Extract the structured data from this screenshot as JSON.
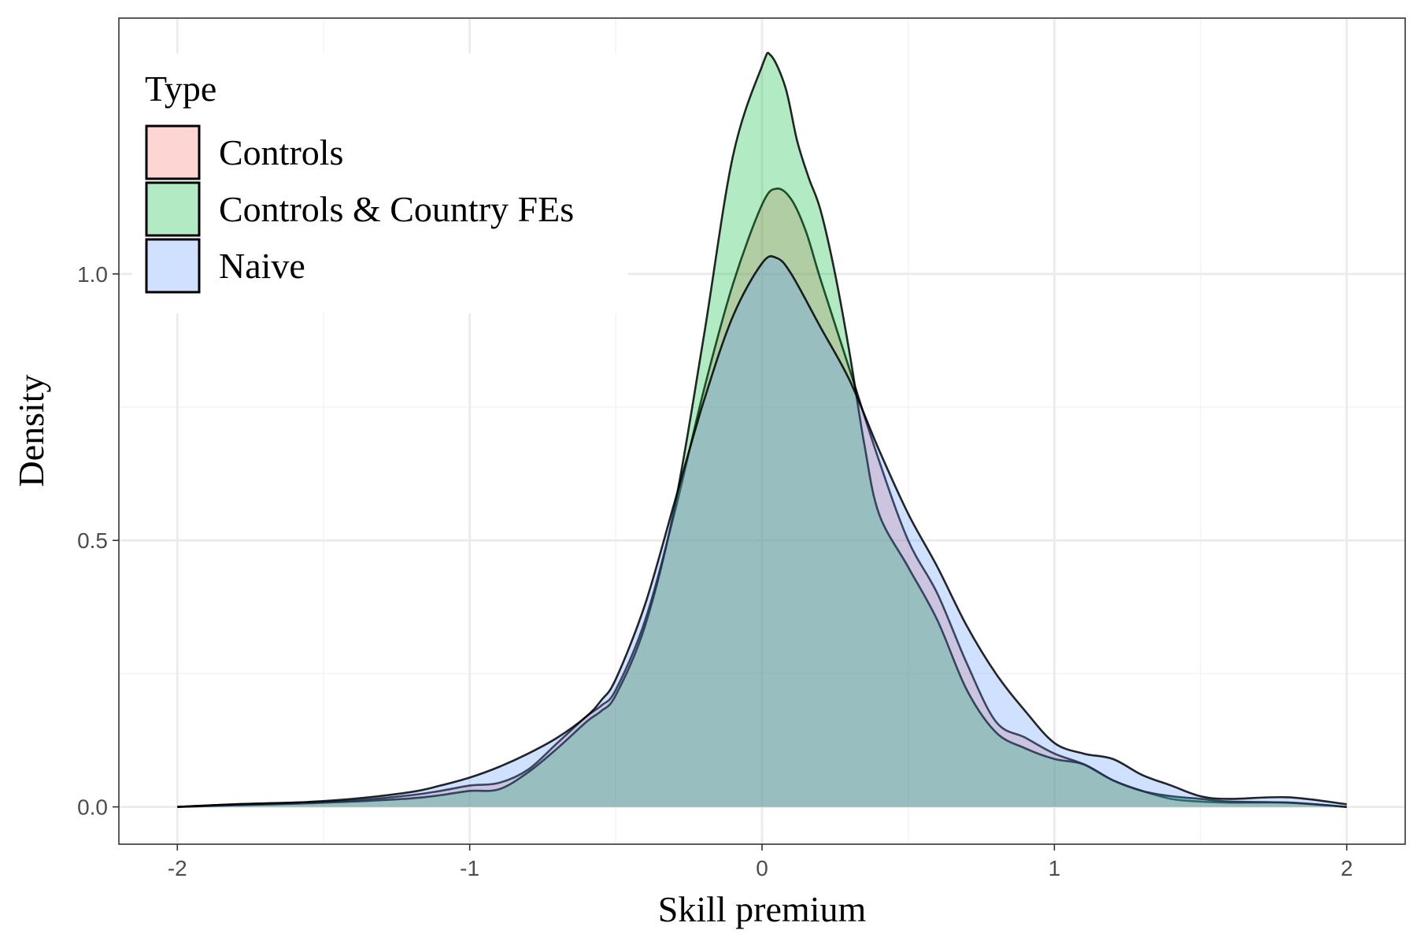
{
  "chart_data": {
    "type": "area",
    "xlabel": "Skill premium",
    "ylabel": "Density",
    "xlim": [
      -2.2,
      2.2
    ],
    "ylim": [
      -0.07,
      1.48
    ],
    "x_ticks": [
      -2,
      -1,
      0,
      1,
      2
    ],
    "x_tick_labels": [
      "-2",
      "-1",
      "0",
      "1",
      "2"
    ],
    "y_ticks": [
      0.0,
      0.5,
      1.0
    ],
    "y_tick_labels": [
      "0.0",
      "0.5",
      "1.0"
    ],
    "grid": true,
    "legend": {
      "title": "Type",
      "position": "top-left",
      "entries": [
        "Controls",
        "Controls & Country FEs",
        "Naive"
      ]
    },
    "series": [
      {
        "name": "Controls",
        "color": "#F8766D",
        "x": [
          -2.0,
          -1.8,
          -1.6,
          -1.4,
          -1.2,
          -1.1,
          -1.0,
          -0.9,
          -0.8,
          -0.7,
          -0.6,
          -0.55,
          -0.5,
          -0.4,
          -0.3,
          -0.2,
          -0.1,
          0.0,
          0.05,
          0.1,
          0.15,
          0.2,
          0.3,
          0.4,
          0.5,
          0.6,
          0.7,
          0.8,
          0.9,
          1.0,
          1.1,
          1.2,
          1.3,
          1.4,
          1.5,
          1.6,
          1.8,
          2.0
        ],
        "y": [
          0.0,
          0.005,
          0.008,
          0.012,
          0.022,
          0.03,
          0.04,
          0.045,
          0.07,
          0.12,
          0.17,
          0.19,
          0.22,
          0.35,
          0.55,
          0.78,
          0.98,
          1.13,
          1.16,
          1.14,
          1.08,
          0.99,
          0.82,
          0.65,
          0.5,
          0.4,
          0.27,
          0.16,
          0.13,
          0.1,
          0.08,
          0.05,
          0.03,
          0.015,
          0.01,
          0.008,
          0.008,
          0.0
        ]
      },
      {
        "name": "Controls & Country FEs",
        "color": "#00BA38",
        "x": [
          -2.0,
          -1.8,
          -1.6,
          -1.4,
          -1.2,
          -1.1,
          -1.0,
          -0.9,
          -0.8,
          -0.7,
          -0.6,
          -0.55,
          -0.5,
          -0.4,
          -0.3,
          -0.2,
          -0.1,
          0.0,
          0.03,
          0.08,
          0.12,
          0.16,
          0.2,
          0.25,
          0.3,
          0.35,
          0.4,
          0.5,
          0.6,
          0.7,
          0.8,
          0.9,
          1.0,
          1.1,
          1.2,
          1.3,
          1.4,
          1.5,
          1.6,
          1.8,
          2.0
        ],
        "y": [
          0.0,
          0.003,
          0.006,
          0.01,
          0.016,
          0.022,
          0.03,
          0.033,
          0.065,
          0.11,
          0.16,
          0.18,
          0.21,
          0.34,
          0.56,
          0.88,
          1.22,
          1.39,
          1.41,
          1.35,
          1.25,
          1.18,
          1.12,
          1.0,
          0.85,
          0.68,
          0.55,
          0.45,
          0.35,
          0.22,
          0.14,
          0.11,
          0.09,
          0.08,
          0.05,
          0.03,
          0.02,
          0.015,
          0.01,
          0.008,
          0.0
        ]
      },
      {
        "name": "Naive",
        "color": "#619CFF",
        "x": [
          -2.0,
          -1.8,
          -1.6,
          -1.4,
          -1.2,
          -1.1,
          -1.0,
          -0.9,
          -0.8,
          -0.7,
          -0.6,
          -0.55,
          -0.5,
          -0.4,
          -0.3,
          -0.2,
          -0.1,
          0.0,
          0.05,
          0.1,
          0.2,
          0.3,
          0.4,
          0.5,
          0.6,
          0.7,
          0.8,
          0.9,
          1.0,
          1.1,
          1.2,
          1.3,
          1.4,
          1.5,
          1.6,
          1.8,
          2.0
        ],
        "y": [
          0.0,
          0.005,
          0.008,
          0.015,
          0.028,
          0.04,
          0.055,
          0.075,
          0.1,
          0.13,
          0.17,
          0.2,
          0.24,
          0.38,
          0.57,
          0.76,
          0.92,
          1.02,
          1.03,
          1.0,
          0.9,
          0.8,
          0.67,
          0.55,
          0.45,
          0.34,
          0.25,
          0.18,
          0.12,
          0.1,
          0.09,
          0.06,
          0.04,
          0.02,
          0.015,
          0.018,
          0.005
        ]
      }
    ]
  }
}
